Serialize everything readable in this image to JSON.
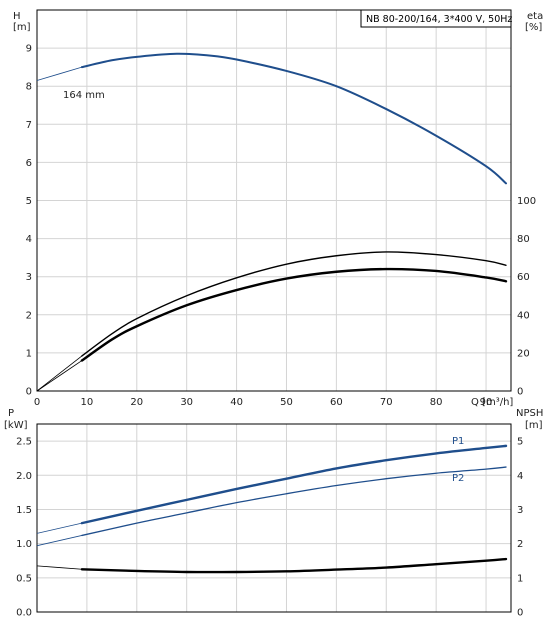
{
  "info_box": {
    "text": "NB 80-200/164, 3*400 V, 50Hz"
  },
  "colors": {
    "blue": "#1f4e8c",
    "black": "#000000",
    "grid": "#d4d4d4"
  },
  "chart_data": [
    {
      "type": "line",
      "xlabel": "Q [m³/h]",
      "xlim": [
        0,
        95
      ],
      "x_ticks": [
        0,
        10,
        20,
        30,
        40,
        50,
        60,
        70,
        80,
        90
      ],
      "ylabel_left": {
        "line1": "H",
        "line2": "[m]"
      },
      "ylim_left": [
        0,
        10
      ],
      "y_ticks_left": [
        0,
        1,
        2,
        3,
        4,
        5,
        6,
        7,
        8,
        9
      ],
      "ylabel_right": {
        "line1": "eta",
        "line2": "[%]"
      },
      "ylim_right": [
        0,
        200
      ],
      "y_ticks_right": [
        0,
        20,
        40,
        60,
        80,
        100
      ],
      "grid": true,
      "series": [
        {
          "name": "164 mm",
          "axis": "left",
          "color": "#1f4e8c",
          "width": 2,
          "x": [
            0,
            9,
            15,
            20,
            28,
            35,
            40,
            50,
            60,
            70,
            80,
            90,
            94
          ],
          "y": [
            8.15,
            8.5,
            8.68,
            8.77,
            8.85,
            8.8,
            8.7,
            8.4,
            8.0,
            7.4,
            6.7,
            5.9,
            5.45
          ],
          "extension_to_index": 1
        },
        {
          "axis": "left",
          "color": "#000000",
          "width": 1.4,
          "x": [
            0,
            9,
            15,
            20,
            30,
            40,
            50,
            60,
            70,
            80,
            90,
            94
          ],
          "y": [
            0,
            0.92,
            1.5,
            1.9,
            2.5,
            2.97,
            3.33,
            3.55,
            3.65,
            3.58,
            3.42,
            3.3
          ],
          "extension_to_index": 1
        },
        {
          "axis": "left",
          "color": "#000000",
          "width": 2.4,
          "x": [
            0,
            9,
            15,
            20,
            30,
            40,
            50,
            60,
            70,
            80,
            90,
            94
          ],
          "y": [
            0,
            0.8,
            1.35,
            1.7,
            2.25,
            2.65,
            2.95,
            3.13,
            3.2,
            3.15,
            2.98,
            2.88
          ],
          "extension_to_index": 1
        }
      ]
    },
    {
      "type": "line",
      "xlim": [
        0,
        95
      ],
      "ylabel_left": {
        "line1": "P",
        "line2": "[kW]"
      },
      "ylim_left": [
        0,
        2.75
      ],
      "y_ticks_left": [
        "0.0",
        "0.5",
        "1.0",
        "1.5",
        "2.0",
        "2.5"
      ],
      "ylabel_right": {
        "line1": "NPSH",
        "line2": "[m]"
      },
      "ylim_right": [
        0,
        5.5
      ],
      "y_ticks_right": [
        0,
        1,
        2,
        3,
        4,
        5
      ],
      "grid": true,
      "series": [
        {
          "name": "P1",
          "axis": "left",
          "color": "#1f4e8c",
          "width": 2.4,
          "x": [
            0,
            9,
            20,
            30,
            40,
            50,
            60,
            70,
            80,
            90,
            94
          ],
          "y": [
            1.15,
            1.3,
            1.48,
            1.64,
            1.8,
            1.95,
            2.1,
            2.22,
            2.32,
            2.4,
            2.43
          ],
          "extension_to_index": 1
        },
        {
          "name": "P2",
          "axis": "left",
          "color": "#1f4e8c",
          "width": 1.3,
          "x": [
            0,
            9,
            20,
            30,
            40,
            50,
            60,
            70,
            80,
            90,
            94
          ],
          "y": [
            0.97,
            1.12,
            1.3,
            1.45,
            1.6,
            1.73,
            1.85,
            1.95,
            2.03,
            2.09,
            2.12
          ],
          "extension_to_index": 1
        },
        {
          "axis": "right",
          "color": "#000000",
          "width": 2.4,
          "x": [
            0,
            9,
            20,
            30,
            40,
            50,
            60,
            70,
            80,
            90,
            94
          ],
          "y": [
            1.35,
            1.25,
            1.2,
            1.17,
            1.17,
            1.19,
            1.24,
            1.3,
            1.4,
            1.5,
            1.55
          ],
          "extension_to_index": 1
        }
      ]
    }
  ]
}
